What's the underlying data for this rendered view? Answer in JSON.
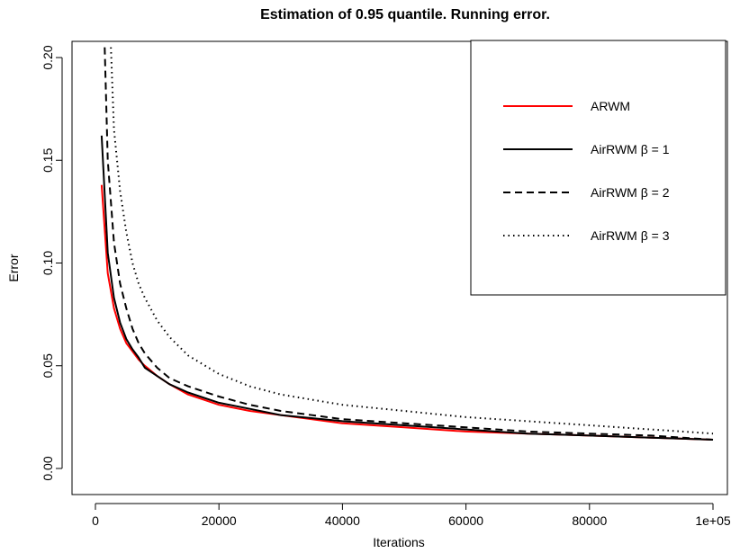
{
  "chart_data": {
    "type": "line",
    "title": "Estimation of 0.95 quantile. Running error.",
    "xlabel": "Iterations",
    "ylabel": "Error",
    "xlim": [
      0,
      100000
    ],
    "ylim": [
      0,
      0.2
    ],
    "x_ticks": [
      0,
      20000,
      40000,
      60000,
      80000,
      100000
    ],
    "x_tick_labels": [
      "0",
      "20000",
      "40000",
      "60000",
      "80000",
      "1e+05"
    ],
    "y_ticks": [
      0,
      0.05,
      0.1,
      0.15,
      0.2
    ],
    "y_tick_labels": [
      "0.00",
      "0.05",
      "0.10",
      "0.15",
      "0.20"
    ],
    "grid": false,
    "legend_position": "top-right",
    "series": [
      {
        "name": "ARWM",
        "color": "#ff0000",
        "line_style": "solid",
        "x": [
          1000,
          2000,
          3000,
          4000,
          5000,
          6000,
          7000,
          8000,
          10000,
          12000,
          15000,
          20000,
          25000,
          30000,
          40000,
          50000,
          60000,
          70000,
          80000,
          90000,
          100000
        ],
        "y": [
          0.138,
          0.095,
          0.078,
          0.068,
          0.061,
          0.057,
          0.053,
          0.05,
          0.045,
          0.041,
          0.036,
          0.031,
          0.028,
          0.026,
          0.022,
          0.02,
          0.018,
          0.017,
          0.016,
          0.015,
          0.014
        ]
      },
      {
        "name": "AirRWM β = 1",
        "color": "#000000",
        "line_style": "solid",
        "x": [
          1000,
          2000,
          3000,
          4000,
          5000,
          6000,
          7000,
          8000,
          10000,
          12000,
          15000,
          20000,
          25000,
          30000,
          40000,
          50000,
          60000,
          70000,
          80000,
          90000,
          100000
        ],
        "y": [
          0.162,
          0.105,
          0.083,
          0.071,
          0.063,
          0.058,
          0.054,
          0.049,
          0.045,
          0.041,
          0.037,
          0.032,
          0.029,
          0.026,
          0.023,
          0.021,
          0.019,
          0.017,
          0.016,
          0.015,
          0.014
        ]
      },
      {
        "name": "AirRWM β = 2",
        "color": "#000000",
        "line_style": "dashed",
        "x": [
          1500,
          2000,
          3000,
          4000,
          5000,
          6000,
          7000,
          8000,
          10000,
          12000,
          15000,
          20000,
          25000,
          30000,
          40000,
          50000,
          60000,
          70000,
          80000,
          90000,
          100000
        ],
        "y": [
          0.205,
          0.15,
          0.11,
          0.09,
          0.078,
          0.068,
          0.061,
          0.056,
          0.049,
          0.044,
          0.04,
          0.035,
          0.031,
          0.028,
          0.024,
          0.022,
          0.02,
          0.018,
          0.017,
          0.016,
          0.014
        ]
      },
      {
        "name": "AirRWM β = 3",
        "color": "#000000",
        "line_style": "dotted",
        "x": [
          2500,
          3000,
          4000,
          5000,
          6000,
          7000,
          8000,
          10000,
          12000,
          15000,
          20000,
          25000,
          30000,
          40000,
          50000,
          60000,
          70000,
          80000,
          90000,
          100000
        ],
        "y": [
          0.205,
          0.165,
          0.135,
          0.115,
          0.1,
          0.09,
          0.083,
          0.072,
          0.064,
          0.055,
          0.046,
          0.04,
          0.036,
          0.031,
          0.028,
          0.025,
          0.023,
          0.021,
          0.019,
          0.017
        ]
      }
    ]
  }
}
